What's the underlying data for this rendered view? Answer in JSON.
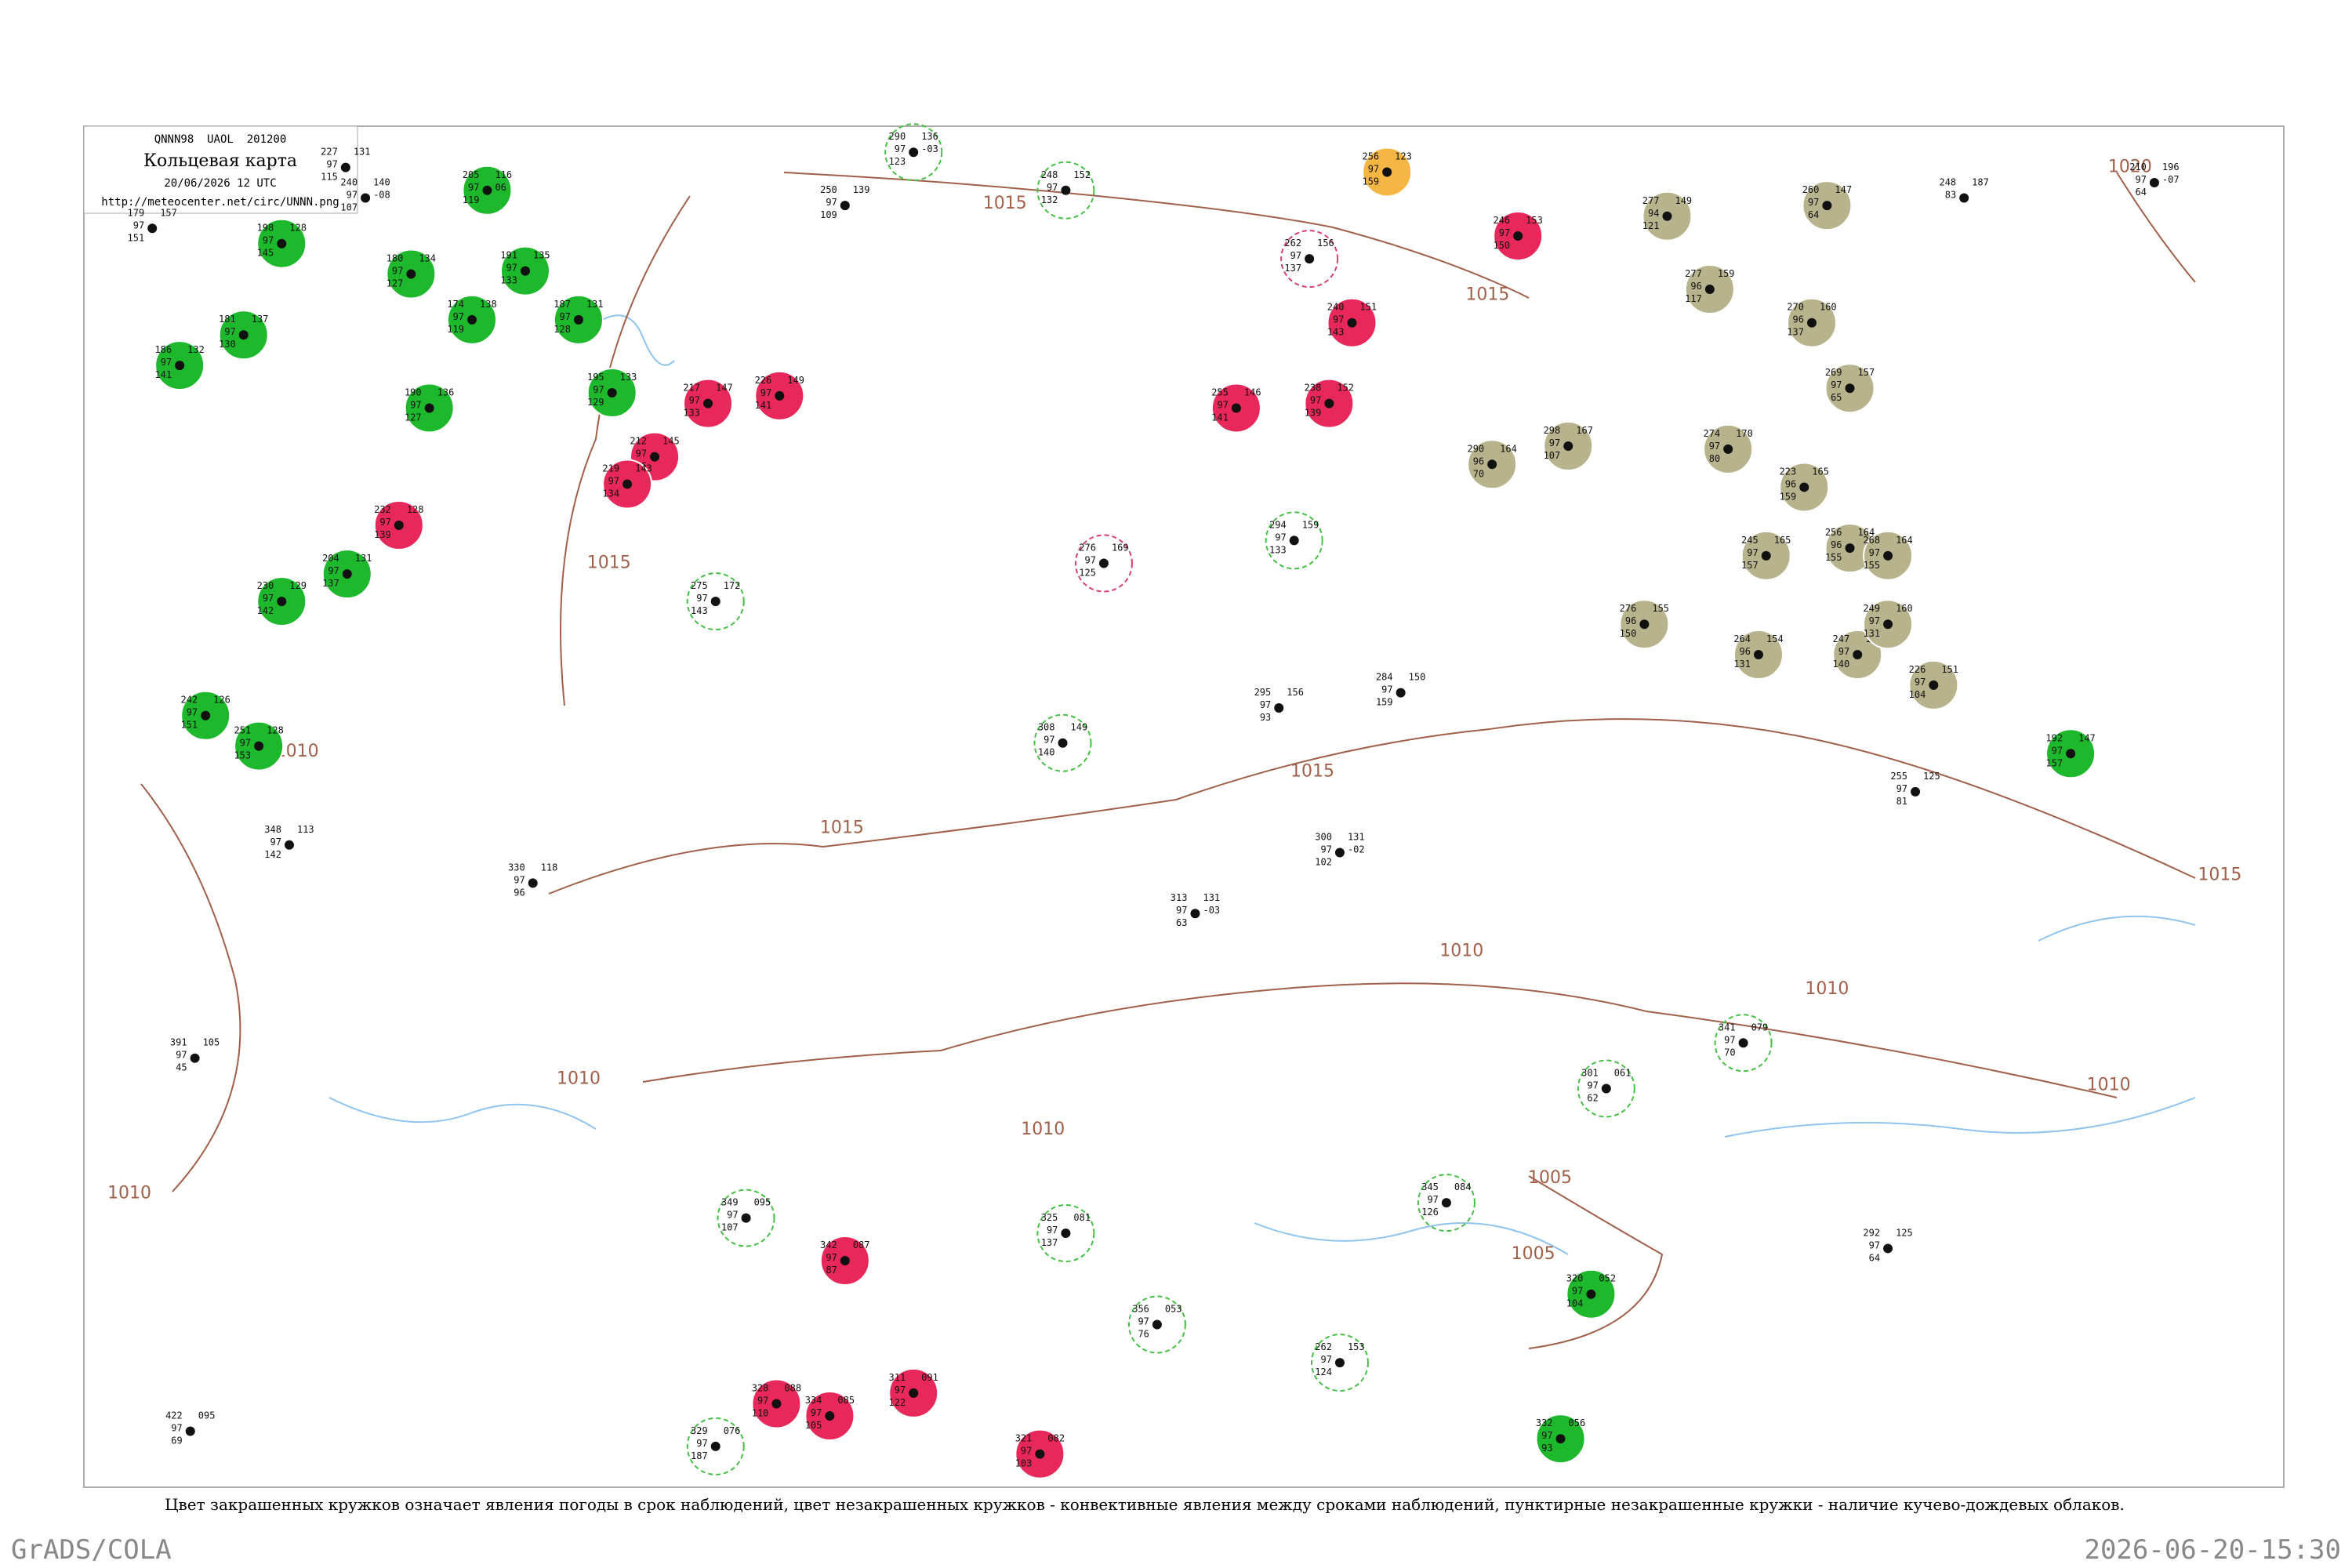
{
  "header": {
    "code": "QNNN98  UAOL  201200",
    "title": "Кольцевая карта",
    "date": "20/06/2026 12 UTC",
    "url": "http://meteocenter.net/circ/UNNN.png"
  },
  "isobar_labels": [
    "1015",
    "1015",
    "1015",
    "1015",
    "1015",
    "1015",
    "1010",
    "1010",
    "1010",
    "1010",
    "1010",
    "1005",
    "1005",
    "1010",
    "1020",
    "1010"
  ],
  "stations": [
    {
      "left": [
        "179",
        "97",
        "151"
      ],
      "right": [
        "157"
      ]
    },
    {
      "left": [
        "198",
        "97",
        "145"
      ],
      "right": [
        "128"
      ],
      "fill": "#1db82b"
    },
    {
      "left": [
        "186",
        "97",
        "141"
      ],
      "right": [
        "132"
      ],
      "fill": "#1db82b"
    },
    {
      "left": [
        "181",
        "97",
        "130"
      ],
      "right": [
        "137"
      ],
      "fill": "#1db82b"
    },
    {
      "left": [
        "180",
        "97",
        "127"
      ],
      "right": [
        "134"
      ],
      "fill": "#1db82b"
    },
    {
      "left": [
        "174",
        "97",
        "119"
      ],
      "right": [
        "138"
      ],
      "fill": "#1db82b"
    },
    {
      "left": [
        "191",
        "97",
        "133"
      ],
      "right": [
        "135"
      ],
      "fill": "#1db82b"
    },
    {
      "left": [
        "187",
        "97",
        "128"
      ],
      "right": [
        "131"
      ],
      "fill": "#1db82b"
    },
    {
      "left": [
        "195",
        "97",
        "129"
      ],
      "right": [
        "133"
      ],
      "fill": "#1db82b"
    },
    {
      "left": [
        "190",
        "97",
        "127"
      ],
      "right": [
        "136"
      ],
      "fill": "#1db82b"
    },
    {
      "left": [
        "204",
        "97",
        "137"
      ],
      "right": [
        "131"
      ],
      "fill": "#1db82b"
    },
    {
      "left": [
        "230",
        "97",
        "142"
      ],
      "right": [
        "129"
      ],
      "fill": "#1db82b"
    },
    {
      "left": [
        "242",
        "97",
        "151"
      ],
      "right": [
        "126"
      ],
      "fill": "#1db82b"
    },
    {
      "left": [
        "251",
        "97",
        "153"
      ],
      "right": [
        "128"
      ],
      "fill": "#1db82b"
    },
    {
      "left": [
        "205",
        "97",
        "119"
      ],
      "right": [
        "116",
        "06"
      ],
      "fill": "#1db82b"
    },
    {
      "left": [
        "217",
        "97",
        "133"
      ],
      "right": [
        "147"
      ],
      "fill": "#e8285a"
    },
    {
      "left": [
        "226",
        "97",
        "141"
      ],
      "right": [
        "149"
      ],
      "fill": "#e8285a"
    },
    {
      "left": [
        "212",
        "97",
        "136"
      ],
      "right": [
        "145"
      ],
      "fill": "#e8285a"
    },
    {
      "left": [
        "219",
        "97",
        "134"
      ],
      "right": [
        "143"
      ],
      "fill": "#e8285a"
    },
    {
      "left": [
        "232",
        "97",
        "139"
      ],
      "right": [
        "128"
      ],
      "fill": "#e8285a"
    },
    {
      "left": [
        "246",
        "97",
        "150"
      ],
      "right": [
        "153"
      ],
      "fill": "#e8285a"
    },
    {
      "left": [
        "240",
        "97",
        "143"
      ],
      "right": [
        "151"
      ],
      "fill": "#e8285a"
    },
    {
      "left": [
        "255",
        "97",
        "141"
      ],
      "right": [
        "146"
      ],
      "fill": "#e8285a"
    },
    {
      "left": [
        "238",
        "97",
        "139"
      ],
      "right": [
        "152"
      ],
      "fill": "#e8285a"
    },
    {
      "left": [
        "342",
        "97",
        "87"
      ],
      "right": [
        "087"
      ],
      "fill": "#e8285a"
    },
    {
      "left": [
        "328",
        "97",
        "110"
      ],
      "right": [
        "088"
      ],
      "fill": "#e8285a"
    },
    {
      "left": [
        "334",
        "97",
        "105"
      ],
      "right": [
        "085"
      ],
      "fill": "#e8285a"
    },
    {
      "left": [
        "311",
        "97",
        "122"
      ],
      "right": [
        "091"
      ],
      "fill": "#e8285a"
    },
    {
      "left": [
        "321",
        "97",
        "103"
      ],
      "right": [
        "082"
      ],
      "fill": "#e8285a"
    },
    {
      "left": [
        "256",
        "97",
        "159"
      ],
      "right": [
        "123"
      ],
      "fill": "#f5b644"
    },
    {
      "left": [
        "277",
        "94",
        "121"
      ],
      "right": [
        "149"
      ],
      "fill": "#b7b38c"
    },
    {
      "left": [
        "277",
        "96",
        "117"
      ],
      "right": [
        "159"
      ],
      "fill": "#b7b38c"
    },
    {
      "left": [
        "270",
        "96",
        "137"
      ],
      "right": [
        "160"
      ],
      "fill": "#b7b38c"
    },
    {
      "left": [
        "260",
        "97",
        "64"
      ],
      "right": [
        "147"
      ],
      "fill": "#b7b38c"
    },
    {
      "left": [
        "298",
        "97",
        "107"
      ],
      "right": [
        "167"
      ],
      "fill": "#b7b38c"
    },
    {
      "left": [
        "290",
        "96",
        "70"
      ],
      "right": [
        "164"
      ],
      "fill": "#b7b38c"
    },
    {
      "left": [
        "274",
        "97",
        "80"
      ],
      "right": [
        "170"
      ],
      "fill": "#b7b38c"
    },
    {
      "left": [
        "223",
        "96",
        "159"
      ],
      "right": [
        "165"
      ],
      "fill": "#b7b38c"
    },
    {
      "left": [
        "269",
        "97",
        "65"
      ],
      "right": [
        "157"
      ],
      "fill": "#b7b38c"
    },
    {
      "left": [
        "245",
        "97",
        "157"
      ],
      "right": [
        "165"
      ],
      "fill": "#b7b38c"
    },
    {
      "left": [
        "256",
        "96",
        "155"
      ],
      "right": [
        "164"
      ],
      "fill": "#b7b38c"
    },
    {
      "left": [
        "268",
        "97",
        "155"
      ],
      "right": [
        "164"
      ],
      "fill": "#b7b38c"
    },
    {
      "left": [
        "276",
        "96",
        "150"
      ],
      "right": [
        "155"
      ],
      "fill": "#b7b38c"
    },
    {
      "left": [
        "264",
        "96",
        "131"
      ],
      "right": [
        "154"
      ],
      "fill": "#b7b38c"
    },
    {
      "left": [
        "247",
        "97",
        "140"
      ],
      "right": [
        "159"
      ],
      "fill": "#b7b38c"
    },
    {
      "left": [
        "249",
        "97",
        "131"
      ],
      "right": [
        "160"
      ],
      "fill": "#b7b38c"
    },
    {
      "left": [
        "226",
        "97",
        "104"
      ],
      "right": [
        "151"
      ],
      "fill": "#b7b38c"
    },
    {
      "left": [
        "192",
        "97",
        "157"
      ],
      "right": [
        "147"
      ],
      "fill": "#1db82b"
    },
    {
      "left": [
        "320",
        "97",
        "104"
      ],
      "right": [
        "052"
      ],
      "fill": "#1db82b"
    },
    {
      "left": [
        "332",
        "97",
        "93"
      ],
      "right": [
        "056"
      ],
      "fill": "#1db82b"
    },
    {
      "left": [
        "227",
        "97",
        "115"
      ],
      "right": [
        "131"
      ]
    },
    {
      "left": [
        "240",
        "97",
        "107"
      ],
      "right": [
        "140",
        "-08"
      ]
    },
    {
      "left": [
        "250",
        "97",
        "109"
      ],
      "right": [
        "139"
      ]
    },
    {
      "left": [
        "290",
        "97",
        "123"
      ],
      "right": [
        "136",
        "-03"
      ],
      "ring": "#44c044"
    },
    {
      "left": [
        "248",
        "97",
        "132"
      ],
      "right": [
        "152"
      ],
      "ring": "#44c044"
    },
    {
      "left": [
        "262",
        "97",
        "137"
      ],
      "right": [
        "156"
      ],
      "ring": "#d8406a"
    },
    {
      "left": [
        "248",
        "83"
      ],
      "right": [
        "187"
      ]
    },
    {
      "left": [
        "210",
        "97",
        "64"
      ],
      "right": [
        "196",
        "-07"
      ]
    },
    {
      "left": [
        "275",
        "97",
        "143"
      ],
      "right": [
        "172"
      ],
      "ring": "#44c044"
    },
    {
      "left": [
        "294",
        "97",
        "133"
      ],
      "right": [
        "159"
      ],
      "ring": "#44c044"
    },
    {
      "left": [
        "276",
        "97",
        "125"
      ],
      "right": [
        "169"
      ],
      "ring": "#d8406a"
    },
    {
      "left": [
        "308",
        "97",
        "140"
      ],
      "right": [
        "149"
      ],
      "ring": "#44c044"
    },
    {
      "left": [
        "284",
        "97",
        "159"
      ],
      "right": [
        "150"
      ]
    },
    {
      "left": [
        "295",
        "97",
        "93"
      ],
      "right": [
        "156"
      ]
    },
    {
      "left": [
        "300",
        "97",
        "102"
      ],
      "right": [
        "131",
        "-02"
      ]
    },
    {
      "left": [
        "313",
        "97",
        "63"
      ],
      "right": [
        "131",
        "-03"
      ]
    },
    {
      "left": [
        "325",
        "97",
        "137"
      ],
      "right": [
        "081"
      ],
      "ring": "#44c044"
    },
    {
      "left": [
        "349",
        "97",
        "107"
      ],
      "right": [
        "095"
      ],
      "ring": "#44c044"
    },
    {
      "left": [
        "262",
        "97",
        "124"
      ],
      "right": [
        "153"
      ],
      "ring": "#44c044"
    },
    {
      "left": [
        "341",
        "97",
        "70"
      ],
      "right": [
        "079"
      ],
      "ring": "#44c044"
    },
    {
      "left": [
        "292",
        "97",
        "64"
      ],
      "right": [
        "125"
      ]
    },
    {
      "left": [
        "255",
        "97",
        "81"
      ],
      "right": [
        "125"
      ]
    },
    {
      "left": [
        "345",
        "97",
        "126"
      ],
      "right": [
        "084"
      ],
      "ring": "#44c044"
    },
    {
      "left": [
        "301",
        "97",
        "62"
      ],
      "right": [
        "061"
      ],
      "ring": "#44c044"
    },
    {
      "left": [
        "356",
        "97",
        "76"
      ],
      "right": [
        "053"
      ],
      "ring": "#44c044"
    },
    {
      "left": [
        "329",
        "97",
        "187"
      ],
      "right": [
        "076"
      ],
      "ring": "#44c044"
    },
    {
      "left": [
        "422",
        "97",
        "69"
      ],
      "right": [
        "095"
      ]
    },
    {
      "left": [
        "391",
        "97",
        "45"
      ],
      "right": [
        "105"
      ]
    },
    {
      "left": [
        "348",
        "97",
        "142"
      ],
      "right": [
        "113"
      ]
    },
    {
      "left": [
        "330",
        "97",
        "96"
      ],
      "right": [
        "118"
      ]
    }
  ],
  "caption": "Цвет закрашенных кружков означает явления погоды в срок наблюдений, цвет незакрашенных кружков - конвективные явления между сроками наблюдений, пунктирные незакрашенные кружки - наличие кучево-дождевых облаков.",
  "footer": {
    "left": "GrADS/COLA",
    "right": "2026-06-20-15:30"
  }
}
